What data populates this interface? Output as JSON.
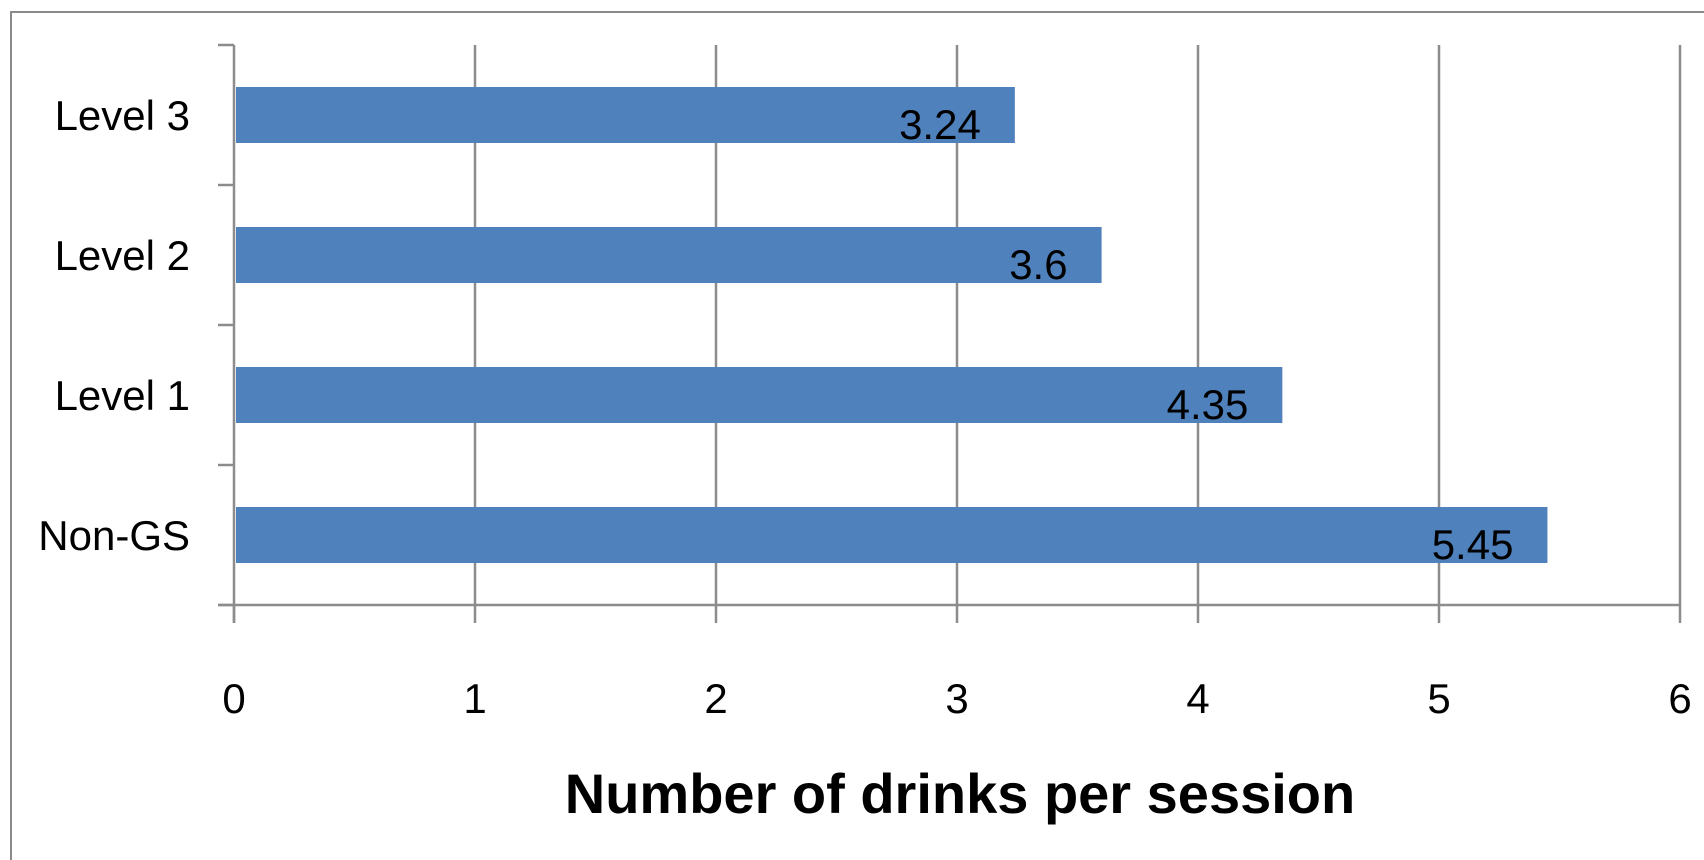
{
  "chart_data": {
    "type": "bar",
    "orientation": "horizontal",
    "categories": [
      "Level 3",
      "Level 2",
      "Level 1",
      "Non-GS"
    ],
    "values": [
      3.24,
      3.6,
      4.35,
      5.45
    ],
    "data_labels": [
      "3.24",
      "3.6",
      "4.35",
      "5.45"
    ],
    "xlabel": "Number of drinks per session",
    "ylabel": "",
    "xlim": [
      0,
      6
    ],
    "x_ticks": [
      "0",
      "1",
      "2",
      "3",
      "4",
      "5",
      "6"
    ],
    "grid": true,
    "legend": "none",
    "bar_color": "#4f81bd",
    "grid_color": "#8c8c8c"
  }
}
